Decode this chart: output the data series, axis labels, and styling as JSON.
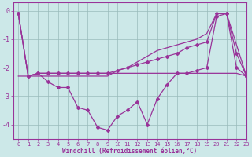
{
  "x": [
    0,
    1,
    2,
    3,
    4,
    5,
    6,
    7,
    8,
    9,
    10,
    11,
    12,
    13,
    14,
    15,
    16,
    17,
    18,
    19,
    20,
    21,
    22,
    23
  ],
  "wc_zigzag": [
    -0.1,
    -2.3,
    -2.2,
    -2.5,
    -2.7,
    -2.7,
    -3.4,
    -3.5,
    -4.1,
    -4.2,
    -3.7,
    -3.5,
    -3.2,
    -4.0,
    -3.1,
    -2.6,
    -2.2,
    -2.2,
    -2.1,
    -2.0,
    -0.2,
    -0.1,
    -2.0,
    -2.3
  ],
  "wc_upper": [
    -0.1,
    -2.3,
    -2.3,
    -2.3,
    -2.3,
    -2.3,
    -2.3,
    -2.3,
    -2.3,
    -2.3,
    -2.1,
    -2.0,
    -1.8,
    -1.6,
    -1.4,
    -1.3,
    -1.2,
    -1.1,
    -1.0,
    -0.8,
    -0.1,
    -0.1,
    -1.2,
    -2.3
  ],
  "wc_mid": [
    -0.1,
    -2.3,
    -2.2,
    -2.2,
    -2.2,
    -2.2,
    -2.2,
    -2.2,
    -2.2,
    -2.2,
    -2.1,
    -2.0,
    -1.9,
    -1.8,
    -1.7,
    -1.6,
    -1.5,
    -1.3,
    -1.2,
    -1.1,
    -0.1,
    -0.1,
    -1.5,
    -2.3
  ],
  "wc_flat": [
    -2.3,
    -2.3,
    -2.2,
    -2.2,
    -2.2,
    -2.2,
    -2.2,
    -2.2,
    -2.2,
    -2.2,
    -2.2,
    -2.2,
    -2.2,
    -2.2,
    -2.2,
    -2.2,
    -2.2,
    -2.2,
    -2.2,
    -2.2,
    -2.2,
    -2.2,
    -2.2,
    -2.3
  ],
  "color": "#993399",
  "bg_color": "#cce8e8",
  "grid_color": "#99bbbb",
  "xlabel": "Windchill (Refroidissement éolien,°C)",
  "ylim": [
    -4.5,
    0.3
  ],
  "xlim": [
    -0.5,
    23
  ],
  "yticks": [
    0,
    -1,
    -2,
    -3,
    -4
  ],
  "xticks": [
    0,
    1,
    2,
    3,
    4,
    5,
    6,
    7,
    8,
    9,
    10,
    11,
    12,
    13,
    14,
    15,
    16,
    17,
    18,
    19,
    20,
    21,
    22,
    23
  ],
  "tick_fontsize": 5,
  "xlabel_fontsize": 5.5
}
